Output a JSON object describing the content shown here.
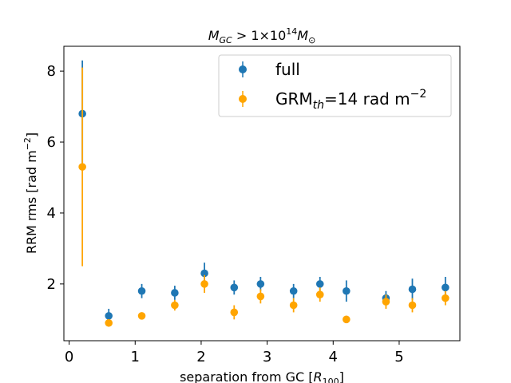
{
  "chart_data": {
    "type": "scatter",
    "title": "M_GC > 1×10^14 M_⊙",
    "xlabel": "separation from GC [R_100]",
    "ylabel": "RRM rms [rad m^-2]",
    "xlim": [
      -0.08,
      5.92
    ],
    "ylim": [
      0.4,
      8.7
    ],
    "xticks": [
      0,
      1,
      2,
      3,
      4,
      5
    ],
    "yticks": [
      2,
      4,
      6,
      8
    ],
    "grid": false,
    "legend_position": "top-right",
    "series": [
      {
        "name": "full",
        "color": "#1f77b4",
        "points": [
          {
            "x": 0.2,
            "y": 6.8,
            "err": 1.5
          },
          {
            "x": 0.6,
            "y": 1.1,
            "err": 0.2
          },
          {
            "x": 1.1,
            "y": 1.8,
            "err": 0.2
          },
          {
            "x": 1.6,
            "y": 1.75,
            "err": 0.2
          },
          {
            "x": 2.05,
            "y": 2.3,
            "err": 0.3
          },
          {
            "x": 2.5,
            "y": 1.9,
            "err": 0.2
          },
          {
            "x": 2.9,
            "y": 2.0,
            "err": 0.2
          },
          {
            "x": 3.4,
            "y": 1.8,
            "err": 0.2
          },
          {
            "x": 3.8,
            "y": 2.0,
            "err": 0.2
          },
          {
            "x": 4.2,
            "y": 1.8,
            "err": 0.3
          },
          {
            "x": 4.8,
            "y": 1.6,
            "err": 0.2
          },
          {
            "x": 5.2,
            "y": 1.85,
            "err": 0.3
          },
          {
            "x": 5.7,
            "y": 1.9,
            "err": 0.3
          }
        ]
      },
      {
        "name": "GRM_th=14 rad m^-2",
        "color": "#ffa500",
        "points": [
          {
            "x": 0.2,
            "y": 5.3,
            "err": 2.8
          },
          {
            "x": 0.6,
            "y": 0.9,
            "err": 0.1
          },
          {
            "x": 1.1,
            "y": 1.1,
            "err": 0.1
          },
          {
            "x": 1.6,
            "y": 1.4,
            "err": 0.15
          },
          {
            "x": 2.05,
            "y": 2.0,
            "err": 0.25
          },
          {
            "x": 2.5,
            "y": 1.2,
            "err": 0.2
          },
          {
            "x": 2.9,
            "y": 1.65,
            "err": 0.2
          },
          {
            "x": 3.4,
            "y": 1.4,
            "err": 0.2
          },
          {
            "x": 3.8,
            "y": 1.7,
            "err": 0.2
          },
          {
            "x": 4.2,
            "y": 1.0,
            "err": 0.1
          },
          {
            "x": 4.8,
            "y": 1.5,
            "err": 0.2
          },
          {
            "x": 5.2,
            "y": 1.4,
            "err": 0.2
          },
          {
            "x": 5.7,
            "y": 1.6,
            "err": 0.2
          }
        ]
      }
    ]
  }
}
